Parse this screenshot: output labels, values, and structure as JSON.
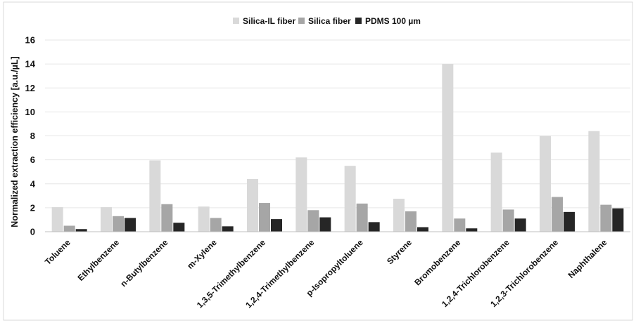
{
  "chart_data": {
    "type": "bar",
    "title": "",
    "xlabel": "",
    "ylabel": "Normalized extraction efficiency [a.u./µL]",
    "ylim": [
      0,
      16
    ],
    "yticks": [
      "0",
      "2",
      "4",
      "6",
      "8",
      "10",
      "12",
      "14",
      "16"
    ],
    "grid": true,
    "legend_position": "top-center",
    "categories": [
      "Toluene",
      "Ethylbenzene",
      "n-Butylbenzene",
      "m-Xylene",
      "1,3,5-Trimethylbenzene",
      "1,2,4-Trimethylbenzene",
      "p-Isopropyltoluene",
      "Styrene",
      "Bromobenzene",
      "1,2,4-Trichlorobenzene",
      "1,2,3-Trichlorobenzene",
      "Naphthalene"
    ],
    "series": [
      {
        "name": "Silica-IL fiber",
        "color": "#d9d9d9",
        "values": [
          2.05,
          2.05,
          5.95,
          2.1,
          4.4,
          6.2,
          5.5,
          2.75,
          14.0,
          6.6,
          8.0,
          8.4
        ]
      },
      {
        "name": "Silica fiber",
        "color": "#a6a6a6",
        "values": [
          0.5,
          1.3,
          2.3,
          1.15,
          2.4,
          1.8,
          2.35,
          1.7,
          1.1,
          1.85,
          2.9,
          2.25
        ]
      },
      {
        "name": "PDMS 100 µm",
        "color": "#262626",
        "values": [
          0.22,
          1.15,
          0.75,
          0.45,
          1.05,
          1.2,
          0.8,
          0.38,
          0.28,
          1.1,
          1.65,
          1.95
        ]
      }
    ]
  }
}
